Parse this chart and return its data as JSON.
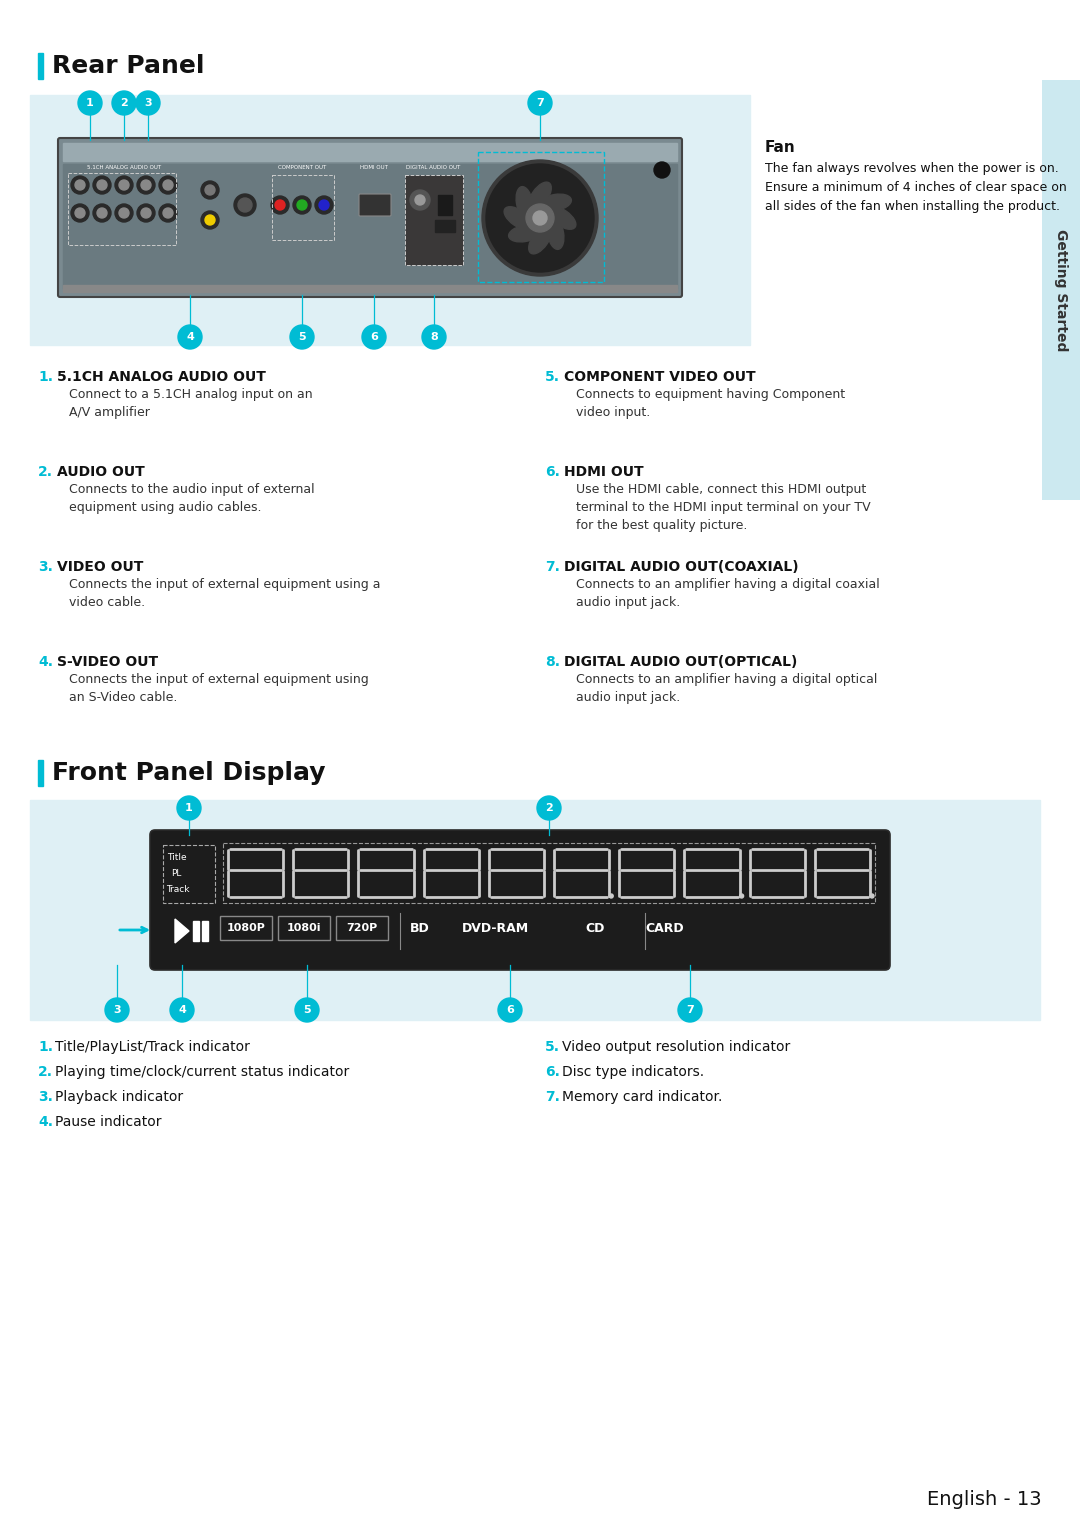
{
  "bg_color": "#ffffff",
  "accent_color": "#00bcd4",
  "light_blue_bg": "#dff0f5",
  "dark_panel": "#5a6570",
  "title_rear": "Rear Panel",
  "title_front": "Front Panel Display",
  "rear_items_left": [
    {
      "num": "1",
      "title": "5.1CH ANALOG AUDIO OUT",
      "desc": "Connect to a 5.1CH analog input on an\nA/V amplifier"
    },
    {
      "num": "2",
      "title": "AUDIO OUT",
      "desc": "Connects to the audio input of external\nequipment using audio cables."
    },
    {
      "num": "3",
      "title": "VIDEO OUT",
      "desc": "Connects the input of external equipment using a\nvideo cable."
    },
    {
      "num": "4",
      "title": "S-VIDEO OUT",
      "desc": "Connects the input of external equipment using\nan S-Video cable."
    }
  ],
  "rear_items_right": [
    {
      "num": "5",
      "title": "COMPONENT VIDEO OUT",
      "desc": "Connects to equipment having Component\nvideo input."
    },
    {
      "num": "6",
      "title": "HDMI OUT",
      "desc": "Use the HDMI cable, connect this HDMI output\nterminal to the HDMI input terminal on your TV\nfor the best quality picture."
    },
    {
      "num": "7",
      "title": "DIGITAL AUDIO OUT(COAXIAL)",
      "desc": "Connects to an amplifier having a digital coaxial\naudio input jack."
    },
    {
      "num": "8",
      "title": "DIGITAL AUDIO OUT(OPTICAL)",
      "desc": "Connects to an amplifier having a digital optical\naudio input jack."
    }
  ],
  "fan_title": "Fan",
  "fan_desc": "The fan always revolves when the power is on.\nEnsure a minimum of 4 inches of clear space on\nall sides of the fan when installing the product.",
  "front_items_left": [
    {
      "num": "1",
      "desc": "Title/PlayList/Track indicator"
    },
    {
      "num": "2",
      "desc": "Playing time/clock/current status indicator"
    },
    {
      "num": "3",
      "desc": "Playback indicator"
    },
    {
      "num": "4",
      "desc": "Pause indicator"
    }
  ],
  "front_items_right": [
    {
      "num": "5",
      "desc": "Video output resolution indicator"
    },
    {
      "num": "6",
      "desc": "Disc type indicators."
    },
    {
      "num": "7",
      "desc": "Memory card indicator."
    }
  ],
  "footer": "English - 13",
  "getting_started_text": "Getting Started"
}
